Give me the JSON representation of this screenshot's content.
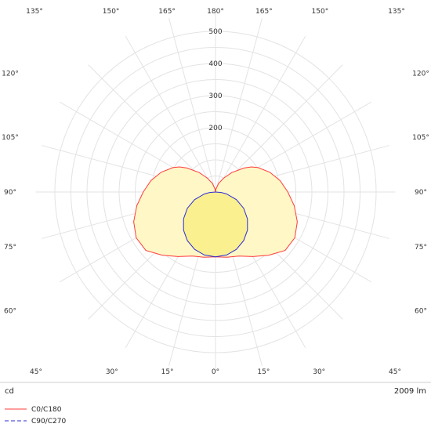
{
  "chart_data": {
    "type": "polar",
    "unit_label": "cd",
    "flux_label": "2009 lm",
    "radial_max": 500,
    "radial_ticks": [
      {
        "value": 200,
        "label": "200"
      },
      {
        "value": 300,
        "label": "300"
      },
      {
        "value": 400,
        "label": "400"
      },
      {
        "value": 500,
        "label": "500"
      }
    ],
    "angle_labels": [
      {
        "value": 0,
        "label": "0°"
      },
      {
        "value": 15,
        "label": "15°"
      },
      {
        "value": -15,
        "label": "15°"
      },
      {
        "value": 30,
        "label": "30°"
      },
      {
        "value": -30,
        "label": "30°"
      },
      {
        "value": 45,
        "label": "45°"
      },
      {
        "value": -45,
        "label": "45°"
      },
      {
        "value": 60,
        "label": "60°"
      },
      {
        "value": -60,
        "label": "60°"
      },
      {
        "value": 75,
        "label": "75°"
      },
      {
        "value": -75,
        "label": "75°"
      },
      {
        "value": 90,
        "label": "90°"
      },
      {
        "value": -90,
        "label": "90°"
      },
      {
        "value": 105,
        "label": "105°"
      },
      {
        "value": -105,
        "label": "105°"
      },
      {
        "value": 120,
        "label": "120°"
      },
      {
        "value": -120,
        "label": "120°"
      },
      {
        "value": 135,
        "label": "135°"
      },
      {
        "value": -135,
        "label": "135°"
      },
      {
        "value": 150,
        "label": "150°"
      },
      {
        "value": -150,
        "label": "150°"
      },
      {
        "value": 165,
        "label": "165°"
      },
      {
        "value": -165,
        "label": "165°"
      },
      {
        "value": 180,
        "label": "180°"
      }
    ],
    "series": [
      {
        "name": "C0/C180",
        "color": "#ff3b3b",
        "style": "solid",
        "angles": [
          0,
          10,
          20,
          30,
          40,
          50,
          60,
          70,
          80,
          90,
          100,
          110,
          120,
          125,
          130,
          140,
          150,
          160,
          170,
          180
        ],
        "values": [
          202,
          206,
          212,
          232,
          257,
          283,
          285,
          271,
          249,
          225,
          204,
          180,
          152,
          136,
          116,
          79,
          49,
          28,
          10,
          0
        ]
      },
      {
        "name": "C90/C270",
        "color": "#2b2bd6",
        "style": "dashed",
        "angles": [
          0,
          10,
          20,
          30,
          40,
          50,
          60,
          70,
          80,
          85,
          90
        ],
        "values": [
          202,
          199,
          190,
          175,
          155,
          130,
          101,
          69,
          35,
          18,
          0
        ]
      }
    ]
  }
}
